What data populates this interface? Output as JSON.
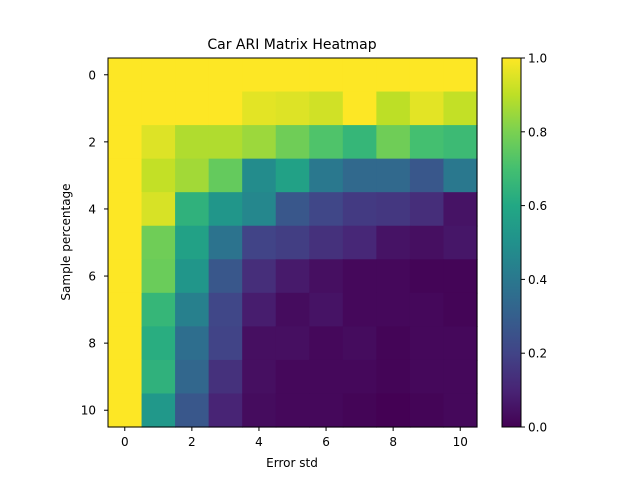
{
  "chart_data": {
    "type": "heatmap",
    "title": "Car ARI Matrix Heatmap",
    "xlabel": "Error std",
    "ylabel": "Sample percentage",
    "x": [
      0,
      1,
      2,
      3,
      4,
      5,
      6,
      7,
      8,
      9,
      10
    ],
    "y": [
      0,
      1,
      2,
      3,
      4,
      5,
      6,
      7,
      8,
      9,
      10
    ],
    "xticks": [
      "0",
      "2",
      "4",
      "6",
      "8",
      "10"
    ],
    "yticks": [
      "0",
      "2",
      "4",
      "6",
      "8",
      "10"
    ],
    "colorbar": {
      "ticks": [
        "0.0",
        "0.2",
        "0.4",
        "0.6",
        "0.8",
        "1.0"
      ],
      "range": [
        0,
        1
      ],
      "colormap": "viridis"
    },
    "grid": false,
    "values": [
      [
        1.0,
        1.0,
        1.0,
        1.0,
        1.0,
        1.0,
        1.0,
        1.0,
        1.0,
        1.0,
        1.0
      ],
      [
        1.0,
        1.0,
        1.0,
        1.0,
        0.96,
        0.95,
        0.93,
        1.0,
        0.9,
        0.96,
        0.91
      ],
      [
        1.0,
        0.95,
        0.88,
        0.88,
        0.85,
        0.78,
        0.72,
        0.66,
        0.78,
        0.7,
        0.68
      ],
      [
        1.0,
        0.91,
        0.86,
        0.76,
        0.48,
        0.57,
        0.4,
        0.34,
        0.34,
        0.27,
        0.4
      ],
      [
        1.0,
        0.94,
        0.64,
        0.52,
        0.46,
        0.27,
        0.21,
        0.17,
        0.16,
        0.13,
        0.05
      ],
      [
        1.0,
        0.78,
        0.57,
        0.38,
        0.2,
        0.18,
        0.14,
        0.11,
        0.05,
        0.04,
        0.06
      ],
      [
        1.0,
        0.77,
        0.52,
        0.27,
        0.13,
        0.07,
        0.04,
        0.02,
        0.02,
        0.01,
        0.01
      ],
      [
        1.0,
        0.66,
        0.43,
        0.21,
        0.08,
        0.03,
        0.05,
        0.02,
        0.02,
        0.02,
        0.01
      ],
      [
        1.0,
        0.62,
        0.36,
        0.2,
        0.04,
        0.04,
        0.02,
        0.03,
        0.01,
        0.02,
        0.02
      ],
      [
        1.0,
        0.64,
        0.33,
        0.14,
        0.04,
        0.02,
        0.02,
        0.02,
        0.01,
        0.02,
        0.02
      ],
      [
        1.0,
        0.53,
        0.27,
        0.1,
        0.03,
        0.02,
        0.02,
        0.01,
        0.0,
        0.01,
        0.02
      ]
    ]
  }
}
